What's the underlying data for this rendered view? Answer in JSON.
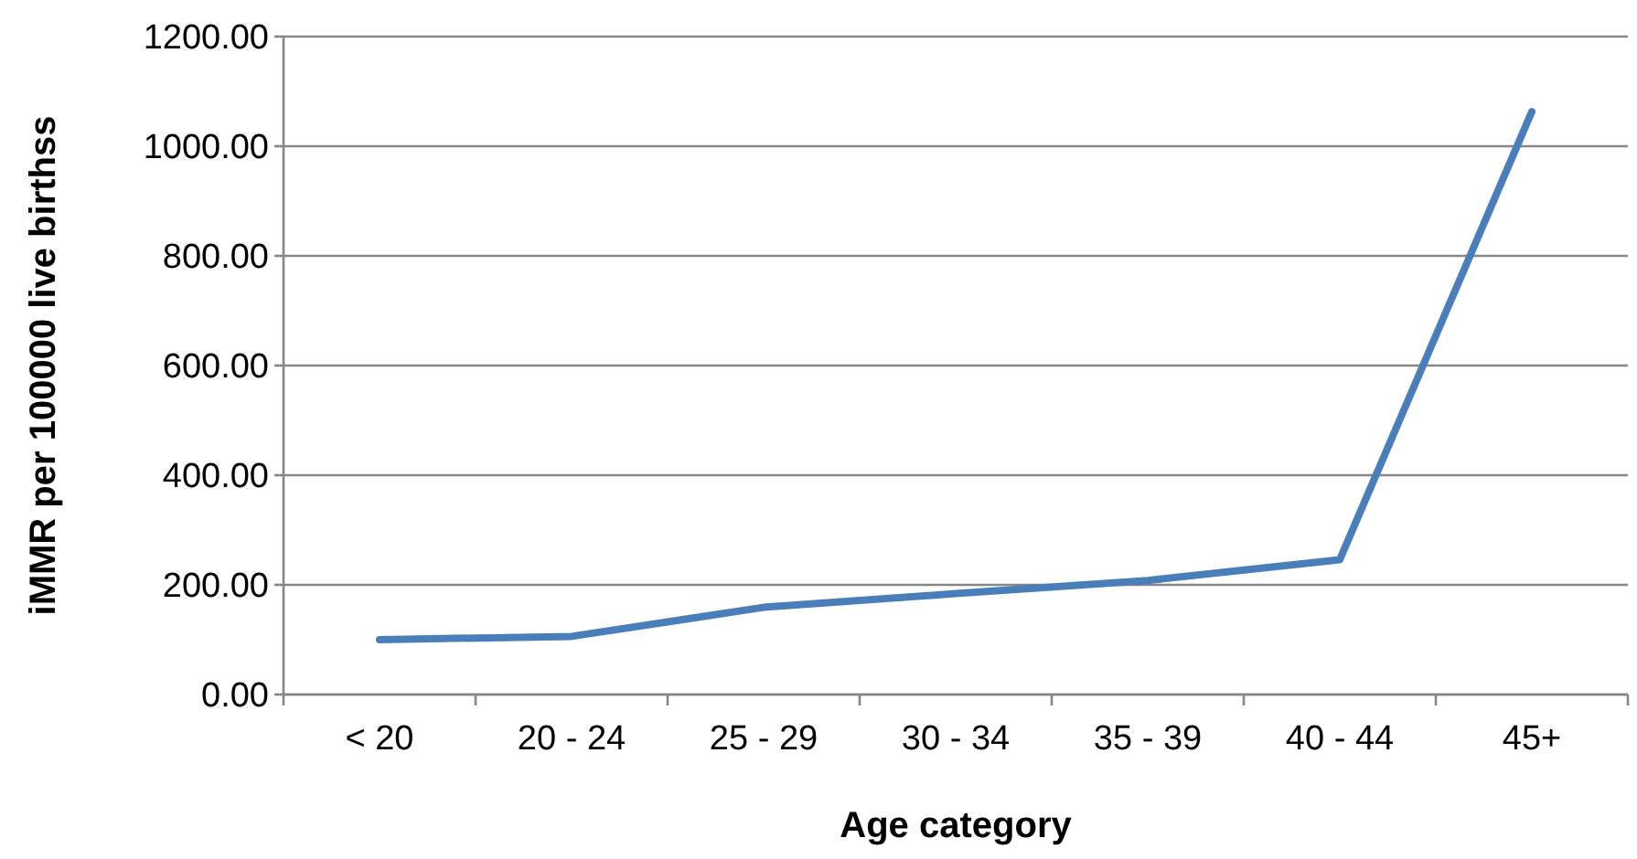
{
  "chart_data": {
    "type": "line",
    "xlabel": "Age category",
    "ylabel": "iMMR per 100000 live birthss",
    "categories": [
      "< 20",
      "20 - 24",
      "25 - 29",
      "30 - 34",
      "35 - 39",
      "40 - 44",
      "45+"
    ],
    "series": [
      {
        "color": "#4a7ebb",
        "values": [
          100,
          106,
          159,
          184,
          208,
          246,
          1063
        ]
      }
    ],
    "ylim": [
      0,
      1200
    ],
    "yticks": [
      {
        "value": 0,
        "label": "0.00"
      },
      {
        "value": 200,
        "label": "200.00"
      },
      {
        "value": 400,
        "label": "400.00"
      },
      {
        "value": 600,
        "label": "600.00"
      },
      {
        "value": 800,
        "label": "800.00"
      },
      {
        "value": 1000,
        "label": "1000.00"
      },
      {
        "value": 1200,
        "label": "1200.00"
      }
    ],
    "grid": "y",
    "marker": "none",
    "line_style": "solid"
  }
}
